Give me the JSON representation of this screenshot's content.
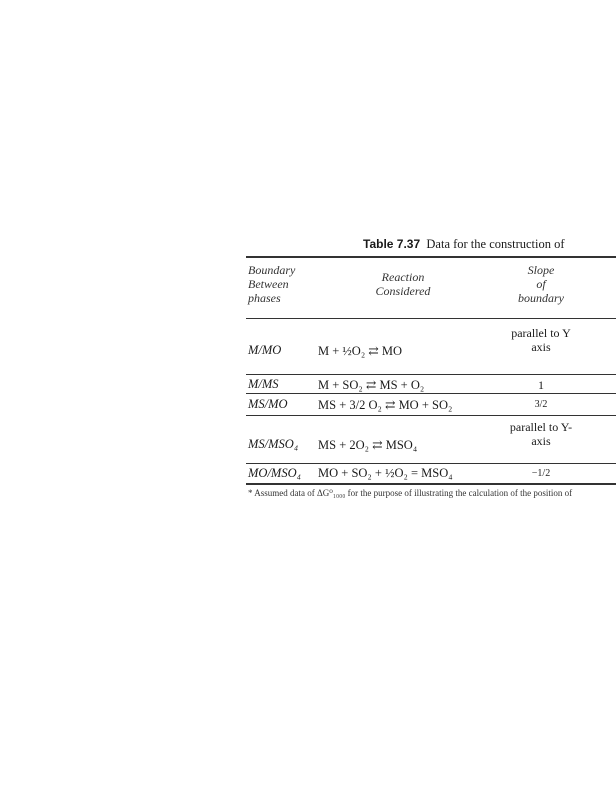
{
  "table": {
    "title_label": "Table 7.37",
    "title_text": "Data for the construction of",
    "headers": {
      "boundary": [
        "Boundary",
        "Between",
        "phases"
      ],
      "reaction": [
        "Reaction",
        "Considered"
      ],
      "slope": [
        "Slope",
        "of",
        "boundary"
      ]
    },
    "rows": [
      {
        "boundary": "M/MO",
        "reaction": "M + ½O₂ ⇄ MO",
        "slope": "parallel to Y axis"
      },
      {
        "boundary": "M/MS",
        "reaction": "M + SO₂ ⇄ MS + O₂",
        "slope": "1"
      },
      {
        "boundary": "MS/MO",
        "reaction": "MS + 3/2 O₂ ⇄ MO + SO₂",
        "slope": "3/2"
      },
      {
        "boundary": "MS/MSO₄",
        "reaction": "MS + 2O₂ ⇄ MSO₄",
        "slope": "parallel to Y-axis"
      },
      {
        "boundary": "MO/MSO₄",
        "reaction": "MO + SO₂ + ½O₂ = MSO₄",
        "slope": "−1/2"
      }
    ],
    "footnote": "* Assumed data of ΔG⁰₁₀₀₀ for the purpose of illustrating the calculation of the position of"
  }
}
